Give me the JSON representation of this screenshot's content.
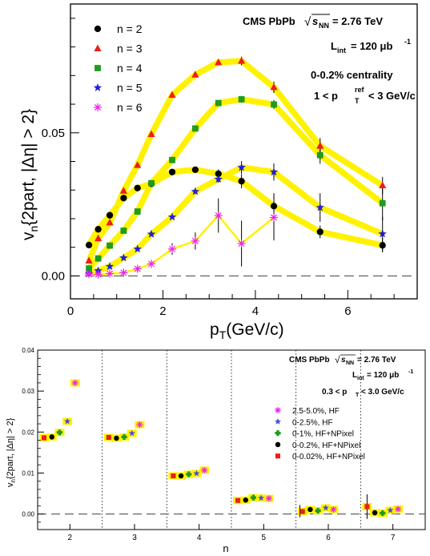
{
  "chart_data": [
    {
      "type": "line",
      "xlabel": "p",
      "xlabel_sub": "T",
      "xlabel_unit": "(GeV/c)",
      "ylabel": "v",
      "ylabel_sub": "n",
      "ylabel_rest": "{2part, |Δη| > 2}",
      "xlim": [
        0,
        7.5
      ],
      "ylim": [
        -0.008,
        0.095
      ],
      "xticks": [
        0,
        2,
        4,
        6
      ],
      "xtick_labels": [
        "0",
        "2",
        "4",
        "6"
      ],
      "yticks": [
        0.0,
        0.05
      ],
      "ytick_labels": [
        "0.00",
        "0.05"
      ],
      "annotations": {
        "experiment": "CMS PbPb",
        "sqrt_label": "s",
        "sqrt_sub": "NN",
        "energy": "= 2.76 TeV",
        "lumi_prefix": "L",
        "lumi_sub": "int",
        "lumi_value": "= 120 μb",
        "lumi_sup": "-1",
        "centrality": "0-0.2% centrality",
        "pt_prefix": "1 < p",
        "pt_sup": "ref",
        "pt_sub": "T",
        "pt_suffix": "< 3 GeV/c"
      },
      "series": [
        {
          "name": "n = 2",
          "color": "#000000",
          "marker": "circle",
          "x": [
            0.4,
            0.6,
            0.85,
            1.15,
            1.45,
            1.75,
            2.2,
            2.7,
            3.2,
            3.7,
            4.4,
            5.4,
            6.75
          ],
          "y": [
            0.0108,
            0.0163,
            0.0212,
            0.0272,
            0.0307,
            0.0322,
            0.0363,
            0.0371,
            0.0357,
            0.0331,
            0.0244,
            0.0154,
            0.0107
          ],
          "err": [
            0.0003,
            0.0003,
            0.0003,
            0.0004,
            0.0005,
            0.0005,
            0.0006,
            0.0008,
            0.0015,
            0.0025,
            0.0045,
            0.0022,
            0.0025
          ]
        },
        {
          "name": "n = 3",
          "color": "#ee1c1c",
          "marker": "triangle",
          "x": [
            0.4,
            0.6,
            0.85,
            1.15,
            1.45,
            1.75,
            2.2,
            2.7,
            3.2,
            3.7,
            4.4,
            5.4,
            6.75
          ],
          "y": [
            0.0053,
            0.0131,
            0.0186,
            0.0297,
            0.0387,
            0.0495,
            0.0632,
            0.0703,
            0.0746,
            0.0751,
            0.0659,
            0.0454,
            0.0316
          ],
          "err": [
            0.0003,
            0.0003,
            0.0003,
            0.0004,
            0.0005,
            0.0005,
            0.0006,
            0.0008,
            0.001,
            0.0015,
            0.002,
            0.0028,
            0.003
          ]
        },
        {
          "name": "n = 4",
          "color": "#1e9c1e",
          "marker": "square",
          "x": [
            0.4,
            0.6,
            0.85,
            1.15,
            1.45,
            1.75,
            2.2,
            2.7,
            3.2,
            3.7,
            4.4,
            5.4,
            6.75
          ],
          "y": [
            0.0026,
            0.0061,
            0.0106,
            0.0158,
            0.0225,
            0.0324,
            0.0405,
            0.0515,
            0.0604,
            0.0617,
            0.0599,
            0.0422,
            0.0254
          ],
          "err": [
            0.0003,
            0.0003,
            0.0003,
            0.0004,
            0.0005,
            0.0005,
            0.0006,
            0.0008,
            0.001,
            0.0012,
            0.0015,
            0.003,
            0.006
          ]
        },
        {
          "name": "n = 5",
          "color": "#2020dd",
          "marker": "star",
          "x": [
            0.4,
            0.6,
            0.85,
            1.15,
            1.45,
            1.75,
            2.2,
            2.7,
            3.2,
            3.7,
            4.4,
            5.4,
            6.75
          ],
          "y": [
            0.0008,
            0.0018,
            0.0033,
            0.0063,
            0.0094,
            0.0146,
            0.0206,
            0.0295,
            0.0338,
            0.0379,
            0.0363,
            0.0239,
            0.0147
          ],
          "err": [
            0.0003,
            0.0003,
            0.0003,
            0.0004,
            0.0005,
            0.0005,
            0.0006,
            0.0008,
            0.0012,
            0.0022,
            0.003,
            0.005,
            0.006
          ]
        },
        {
          "name": "n = 6",
          "color": "#ee22ee",
          "marker": "asterisk",
          "x": [
            0.4,
            0.6,
            0.85,
            1.15,
            1.45,
            1.75,
            2.2,
            2.7,
            3.2,
            3.7,
            4.4
          ],
          "y": [
            0.0006,
            0.0005,
            0.0008,
            0.0011,
            0.0025,
            0.0042,
            0.0094,
            0.0122,
            0.0211,
            0.0113,
            0.0204
          ],
          "err": [
            0.0004,
            0.0004,
            0.0005,
            0.0006,
            0.0008,
            0.001,
            0.002,
            0.003,
            0.006,
            0.008,
            0.008
          ]
        }
      ]
    },
    {
      "type": "scatter",
      "xlabel": "n",
      "ylabel": "v",
      "ylabel_sub": "n",
      "ylabel_rest": "{2part, |Δη| > 2}",
      "xlim": [
        1.5,
        7.5
      ],
      "ylim": [
        -0.0038,
        0.04
      ],
      "xticks": [
        2,
        3,
        4,
        5,
        6,
        7
      ],
      "xtick_labels": [
        "2",
        "3",
        "4",
        "5",
        "6",
        "7"
      ],
      "yticks": [
        0.0,
        0.01,
        0.02,
        0.03,
        0.04
      ],
      "ytick_labels": [
        "0.00",
        "0.01",
        "0.02",
        "0.03",
        "0.04"
      ],
      "dividers": [
        2.5,
        3.5,
        4.5,
        5.5,
        6.5
      ],
      "annotations": {
        "experiment": "CMS PbPb",
        "sqrt_label": "s",
        "sqrt_sub": "NN",
        "energy": "= 2.76 TeV",
        "lumi_prefix": "L",
        "lumi_sub": "int",
        "lumi_value": "= 120 μb",
        "lumi_sup": "-1",
        "pt_prefix": "0.3 < p",
        "pt_sub": "T",
        "pt_suffix": "< 3.0 GeV/c"
      },
      "series": [
        {
          "name": "2.5-5.0%, HF",
          "color": "#ee22ee",
          "marker": "asterisk",
          "x": [
            2.08,
            3.08,
            4.08,
            5.08,
            6.08,
            7.08
          ],
          "y": [
            0.032,
            0.0218,
            0.0107,
            0.0038,
            0.0011,
            0.0012
          ]
        },
        {
          "name": "0-2.5%, HF",
          "color": "#4a4ae0",
          "marker": "star",
          "x": [
            1.96,
            2.96,
            3.96,
            4.96,
            5.96,
            6.96
          ],
          "y": [
            0.0226,
            0.0197,
            0.0099,
            0.0039,
            0.0015,
            0.0009
          ]
        },
        {
          "name": "0-1%, HF+NPixel",
          "color": "#1e9c1e",
          "marker": "cross",
          "x": [
            1.84,
            2.84,
            3.84,
            4.84,
            5.84,
            6.84
          ],
          "y": [
            0.0199,
            0.0188,
            0.0097,
            0.004,
            0.0008,
            0.0002
          ]
        },
        {
          "name": "0-0.2%, HF+NPixel",
          "color": "#000000",
          "marker": "circle",
          "x": [
            1.72,
            2.72,
            3.72,
            4.72,
            5.72,
            6.72
          ],
          "y": [
            0.0188,
            0.0185,
            0.0093,
            0.0034,
            0.0011,
            0.0003
          ]
        },
        {
          "name": "0-0.02%, HF+NPixel",
          "color": "#ee1c1c",
          "marker": "square",
          "x": [
            1.6,
            2.6,
            3.6,
            4.6,
            5.6,
            6.6
          ],
          "y": [
            0.0186,
            0.0187,
            0.0093,
            0.0033,
            0.0006,
            0.0018
          ]
        }
      ]
    }
  ]
}
